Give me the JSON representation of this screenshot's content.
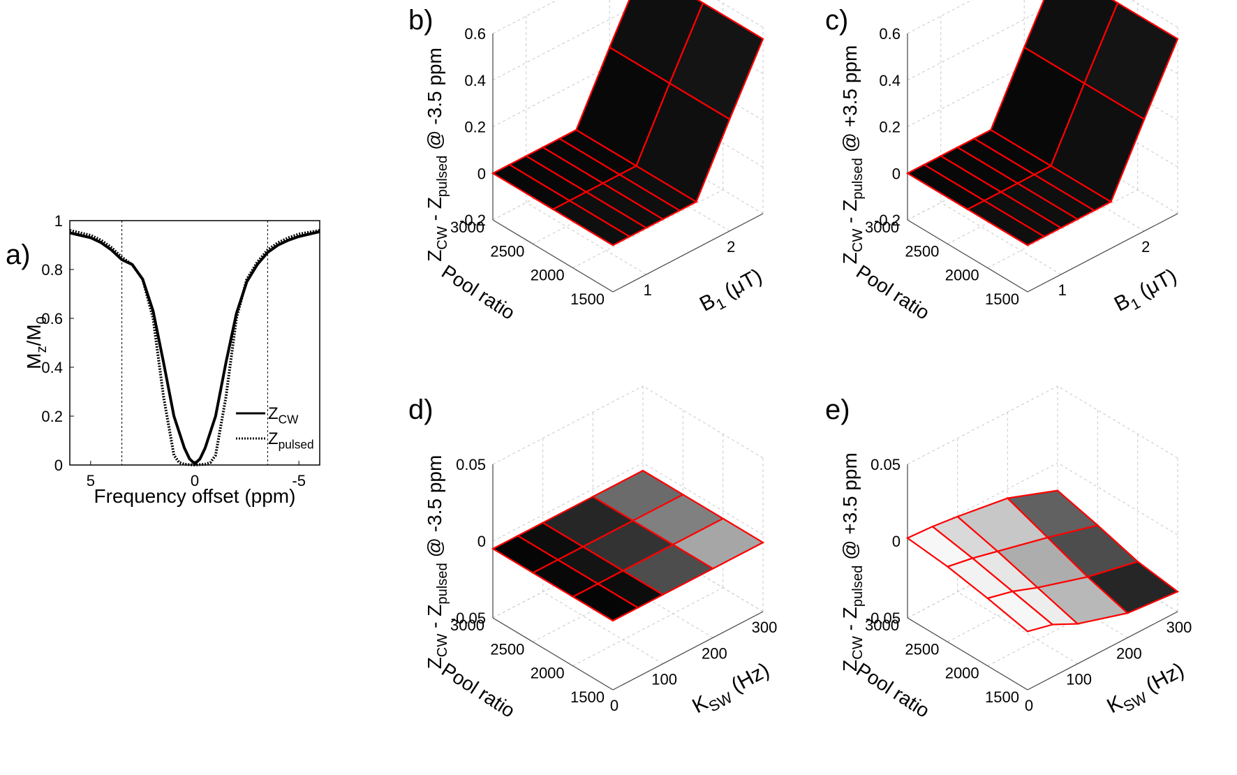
{
  "figure": {
    "panels": [
      "a)",
      "b)",
      "c)",
      "d)",
      "e)"
    ]
  },
  "chart_data": [
    {
      "id": "a",
      "type": "line",
      "title": "",
      "xlabel": "Frequency offset (ppm)",
      "ylabel": "Mz/M0",
      "ylabel_main": "M",
      "ylabel_sub1": "z",
      "ylabel_mid": "/M",
      "ylabel_sub2": "0",
      "xlim": [
        6,
        -6
      ],
      "ylim": [
        0,
        1
      ],
      "xticks": [
        5,
        0,
        -5
      ],
      "xtick_labels": [
        "5",
        "0",
        "-5"
      ],
      "yticks": [
        0,
        0.2,
        0.4,
        0.6,
        0.8,
        1
      ],
      "ytick_labels": [
        "0",
        "0.2",
        "0.4",
        "0.6",
        "0.8",
        "1"
      ],
      "vlines": [
        3.5,
        -3.5
      ],
      "legend_position": "right",
      "series": [
        {
          "name": "Z_CW",
          "label_main": "Z",
          "label_sub": "CW",
          "style": "solid",
          "x": [
            6,
            5,
            4.5,
            4,
            3.5,
            3,
            2.5,
            2,
            1.5,
            1,
            0.5,
            0.25,
            0,
            -0.25,
            -0.5,
            -1,
            -1.5,
            -2,
            -2.5,
            -3,
            -3.5,
            -4,
            -4.5,
            -5,
            -6
          ],
          "y": [
            0.95,
            0.93,
            0.91,
            0.88,
            0.84,
            0.82,
            0.76,
            0.63,
            0.42,
            0.2,
            0.07,
            0.025,
            0.005,
            0.025,
            0.07,
            0.2,
            0.42,
            0.62,
            0.75,
            0.82,
            0.87,
            0.9,
            0.92,
            0.935,
            0.955
          ]
        },
        {
          "name": "Z_pulsed",
          "label_main": "Z",
          "label_sub": "pulsed",
          "style": "dotted",
          "x": [
            6,
            5,
            4.5,
            4,
            3.5,
            3,
            2.5,
            2,
            1.5,
            1,
            0.75,
            0.5,
            0,
            -0.5,
            -0.75,
            -1,
            -1.5,
            -2,
            -2.5,
            -3,
            -3.5,
            -4,
            -4.5,
            -5,
            -6
          ],
          "y": [
            0.96,
            0.94,
            0.92,
            0.89,
            0.85,
            0.82,
            0.76,
            0.6,
            0.28,
            0.04,
            0.01,
            0.003,
            0.0,
            0.003,
            0.01,
            0.04,
            0.28,
            0.6,
            0.76,
            0.83,
            0.88,
            0.91,
            0.93,
            0.945,
            0.96
          ]
        }
      ]
    },
    {
      "id": "b",
      "type": "surface",
      "zlabel": "Z_CW - Z_pulsed @ -3.5 ppm",
      "zlabel_parts": [
        "Z",
        "CW",
        " - Z",
        "pulsed",
        " @ -3.5 ppm"
      ],
      "xlabel": "Pool ratio",
      "ylabel": "B1 (μT)",
      "ylabel_parts": [
        "B",
        "1",
        " (μT)"
      ],
      "zlim": [
        -0.2,
        0.6
      ],
      "zticks": [
        -0.2,
        0,
        0.2,
        0.4,
        0.6
      ],
      "ztick_labels": [
        "-0.2",
        "0",
        "0.2",
        "0.4",
        "0.6"
      ],
      "xlim": [
        1500,
        3000
      ],
      "xticks": [
        3000,
        2500,
        2000,
        1500
      ],
      "xtick_labels": [
        "3000",
        "2500",
        "2000",
        "1500"
      ],
      "ylim": [
        0.6,
        2.4
      ],
      "yticks": [
        1,
        2
      ],
      "ytick_labels": [
        "1",
        "2"
      ],
      "grid_x": [
        1500,
        2250,
        3000
      ],
      "grid_y": [
        0.6,
        0.8,
        1.0,
        1.2,
        1.4,
        1.6,
        2.0,
        2.4
      ],
      "z": [
        [
          0,
          0,
          0,
          0,
          0,
          0,
          0.28,
          0.55
        ],
        [
          0,
          0,
          0,
          0,
          0,
          0,
          0.28,
          0.55
        ],
        [
          0,
          0,
          0,
          0,
          0,
          0,
          0.28,
          0.55
        ]
      ],
      "shade": [
        [
          0.06,
          0.06,
          0.06,
          0.06,
          0.06,
          0.06,
          0.08
        ],
        [
          0.03,
          0.03,
          0.03,
          0.03,
          0.03,
          0.03,
          0.06
        ]
      ],
      "edge_color": "#ff0000"
    },
    {
      "id": "c",
      "type": "surface",
      "zlabel": "Z_CW - Z_pulsed @ +3.5 ppm",
      "zlabel_parts": [
        "Z",
        "CW",
        " - Z",
        "pulsed",
        " @ +3.5 ppm"
      ],
      "xlabel": "Pool ratio",
      "ylabel": "B1 (μT)",
      "ylabel_parts": [
        "B",
        "1",
        " (μT)"
      ],
      "zlim": [
        -0.2,
        0.6
      ],
      "zticks": [
        -0.2,
        0,
        0.2,
        0.4,
        0.6
      ],
      "ztick_labels": [
        "-0.2",
        "0",
        "0.2",
        "0.4",
        "0.6"
      ],
      "xlim": [
        1500,
        3000
      ],
      "xticks": [
        3000,
        2500,
        2000,
        1500
      ],
      "xtick_labels": [
        "3000",
        "2500",
        "2000",
        "1500"
      ],
      "ylim": [
        0.6,
        2.4
      ],
      "yticks": [
        1,
        2
      ],
      "ytick_labels": [
        "1",
        "2"
      ],
      "grid_x": [
        1500,
        2250,
        3000
      ],
      "grid_y": [
        0.6,
        0.8,
        1.0,
        1.2,
        1.4,
        1.6,
        2.0,
        2.4
      ],
      "z": [
        [
          0,
          0,
          0,
          0,
          0,
          0,
          0.28,
          0.55
        ],
        [
          0,
          0,
          0,
          0,
          0,
          0,
          0.28,
          0.55
        ],
        [
          0,
          0,
          0,
          0,
          0,
          0,
          0.28,
          0.55
        ]
      ],
      "shade": [
        [
          0.06,
          0.06,
          0.06,
          0.06,
          0.06,
          0.06,
          0.08
        ],
        [
          0.03,
          0.03,
          0.03,
          0.03,
          0.03,
          0.03,
          0.06
        ]
      ],
      "edge_color": "#ff0000"
    },
    {
      "id": "d",
      "type": "surface",
      "zlabel": "Z_CW - Z_pulsed @ -3.5 ppm",
      "zlabel_parts": [
        "Z",
        "CW",
        " - Z",
        "pulsed",
        " @ -3.5 ppm"
      ],
      "xlabel": "Pool ratio",
      "ylabel": "KSW (Hz)",
      "ylabel_parts": [
        "K",
        "SW",
        " (Hz)"
      ],
      "zlim": [
        -0.05,
        0.05
      ],
      "zticks": [
        -0.05,
        0,
        0.05
      ],
      "ztick_labels": [
        "-0.05",
        "0",
        "0.05"
      ],
      "xlim": [
        1500,
        3000
      ],
      "xticks": [
        3000,
        2500,
        2000,
        1500
      ],
      "xtick_labels": [
        "3000",
        "2500",
        "2000",
        "1500"
      ],
      "ylim": [
        0,
        300
      ],
      "yticks": [
        0,
        100,
        200,
        300
      ],
      "ytick_labels": [
        "0",
        "100",
        "200",
        "300"
      ],
      "grid_x": [
        1500,
        2000,
        2500,
        3000
      ],
      "grid_y": [
        0,
        50,
        100,
        200,
        300
      ],
      "z": [
        [
          -0.005,
          -0.005,
          -0.005,
          -0.005,
          -0.005
        ],
        [
          -0.005,
          -0.005,
          -0.005,
          -0.005,
          -0.005
        ],
        [
          -0.005,
          -0.005,
          -0.005,
          -0.005,
          -0.005
        ],
        [
          -0.005,
          -0.005,
          -0.005,
          -0.005,
          -0.005
        ]
      ],
      "shade": [
        [
          0.02,
          0.05,
          0.3,
          0.65
        ],
        [
          0.03,
          0.08,
          0.2,
          0.5
        ],
        [
          0.02,
          0.05,
          0.15,
          0.42
        ]
      ],
      "edge_color": "#ff0000"
    },
    {
      "id": "e",
      "type": "surface",
      "zlabel": "Z_CW - Z_pulsed @ +3.5 ppm",
      "zlabel_parts": [
        "Z",
        "CW",
        " - Z",
        "pulsed",
        " @ +3.5 ppm"
      ],
      "xlabel": "Pool ratio",
      "ylabel": "KSW (Hz)",
      "ylabel_parts": [
        "K",
        "SW",
        " (Hz)"
      ],
      "zlim": [
        -0.05,
        0.05
      ],
      "zticks": [
        -0.05,
        0,
        0.05
      ],
      "ztick_labels": [
        "-0.05",
        "0",
        "0.05"
      ],
      "xlim": [
        1500,
        3000
      ],
      "xticks": [
        3000,
        2500,
        2000,
        1500
      ],
      "xtick_labels": [
        "3000",
        "2500",
        "2000",
        "1500"
      ],
      "ylim": [
        0,
        300
      ],
      "yticks": [
        0,
        100,
        200,
        300
      ],
      "ytick_labels": [
        "0",
        "100",
        "200",
        "300"
      ],
      "grid_x": [
        1500,
        2000,
        2500,
        3000
      ],
      "grid_y": [
        0,
        50,
        100,
        200,
        300
      ],
      "z": [
        [
          -0.012,
          -0.016,
          -0.024,
          -0.034,
          -0.037
        ],
        [
          -0.006,
          -0.01,
          -0.016,
          -0.026,
          -0.033
        ],
        [
          -0.001,
          -0.004,
          -0.008,
          -0.016,
          -0.025
        ],
        [
          0.002,
          0.001,
          -0.001,
          -0.006,
          -0.018
        ]
      ],
      "shade": [
        [
          0.97,
          0.93,
          0.72,
          0.15
        ],
        [
          0.95,
          0.9,
          0.68,
          0.3
        ],
        [
          0.97,
          0.85,
          0.78,
          0.38
        ]
      ],
      "edge_color": "#ff0000"
    }
  ]
}
